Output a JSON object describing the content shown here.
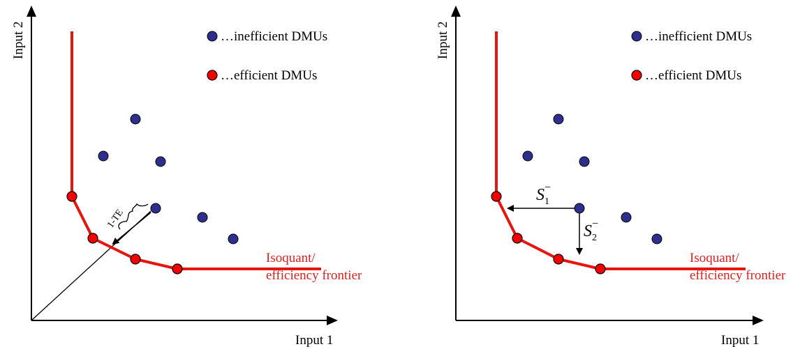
{
  "colors": {
    "frontier": "#e8150f",
    "efficient_fill": "#f40000",
    "inefficient_fill": "#2e2f8d",
    "frontier_label": "#e0201b",
    "axis": "#000000"
  },
  "left_panel": {
    "y_axis_label": "Input 2",
    "x_axis_label": "Input 1",
    "legend": {
      "inefficient": "…inefficient DMUs",
      "efficient": "…efficient DMUs"
    },
    "frontier_label": {
      "line1": "Isoquant/",
      "line2": "efficiency frontier"
    },
    "distance_label": "1-TE"
  },
  "right_panel": {
    "y_axis_label": "Input 2",
    "x_axis_label": "Input 1",
    "legend": {
      "inefficient": "…inefficient DMUs",
      "efficient": "…efficient DMUs"
    },
    "frontier_label": {
      "line1": "Isoquant/",
      "line2": "efficiency frontier"
    },
    "slack_1": {
      "base": "S",
      "sub": "1",
      "sup": "−"
    },
    "slack_2": {
      "base": "S",
      "sub": "2",
      "sup": "−"
    }
  }
}
